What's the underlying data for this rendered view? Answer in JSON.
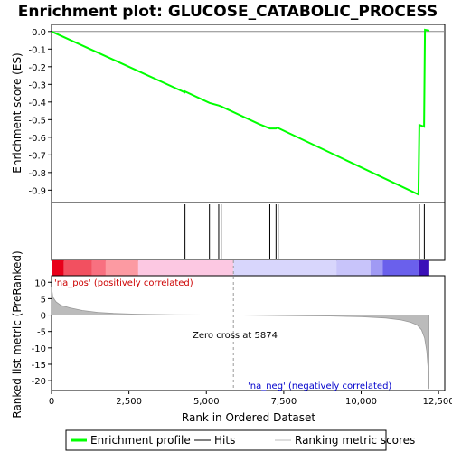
{
  "chart_data": {
    "type": "line",
    "title": "Enrichment plot: GLUCOSE_CATABOLIC_PROCESS",
    "top_panel": {
      "ylabel": "Enrichment score (ES)",
      "ylim": [
        -0.97,
        0.04
      ],
      "yticks": [
        0.0,
        -0.1,
        -0.2,
        -0.3,
        -0.4,
        -0.5,
        -0.6,
        -0.7,
        -0.8,
        -0.9
      ],
      "ytick_labels": [
        "0.0",
        "-0.1",
        "-0.2",
        "-0.3",
        "-0.4",
        "-0.5",
        "-0.6",
        "-0.7",
        "-0.8",
        "-0.9"
      ],
      "series": [
        {
          "name": "Enrichment profile",
          "color": "#00ff00",
          "x": [
            0,
            4300,
            4310,
            5100,
            5400,
            5480,
            6700,
            7050,
            7250,
            7300,
            7350,
            11850,
            11880,
            12030,
            12060,
            12200
          ],
          "y": [
            0.0,
            -0.345,
            -0.34,
            -0.405,
            -0.42,
            -0.425,
            -0.525,
            -0.55,
            -0.55,
            -0.545,
            -0.55,
            -0.925,
            -0.53,
            -0.54,
            0.01,
            0.005
          ]
        }
      ]
    },
    "hits": {
      "name": "Hits",
      "positions": [
        4310,
        5100,
        5400,
        5480,
        6700,
        7050,
        7250,
        7320,
        11880,
        12040
      ]
    },
    "bottom_panel": {
      "ylabel": "Ranked list metric (PreRanked)",
      "xlabel": "Rank in Ordered Dataset",
      "ylim": [
        -23,
        12
      ],
      "yticks": [
        10,
        5,
        0,
        -5,
        -10,
        -15,
        -20
      ],
      "ytick_labels": [
        "10",
        "5",
        "0",
        "-5",
        "-10",
        "-15",
        "-20"
      ],
      "xlim": [
        0,
        12700
      ],
      "xticks": [
        0,
        2500,
        5000,
        7500,
        10000,
        12500
      ],
      "xtick_labels": [
        "0",
        "2,500",
        "5,000",
        "7,500",
        "10,000",
        "12,500"
      ],
      "metric": {
        "x": [
          0,
          40,
          150,
          300,
          600,
          1000,
          1500,
          2000,
          2800,
          4000,
          5874,
          7500,
          9000,
          10000,
          10800,
          11300,
          11600,
          11800,
          11950,
          12050,
          12120,
          12160,
          12190
        ],
        "y": [
          8.5,
          5.5,
          4.0,
          3.0,
          2.2,
          1.4,
          0.8,
          0.5,
          0.25,
          0.08,
          0.0,
          -0.15,
          -0.3,
          -0.5,
          -0.9,
          -1.5,
          -2.2,
          -3.0,
          -4.5,
          -7.0,
          -11.0,
          -16.0,
          -22.5
        ]
      },
      "zero_cross_label": "Zero cross at 5874",
      "zero_cross": 5874,
      "pos_label": "'na_pos' (positively correlated)",
      "neg_label": "'na_neg' (negatively correlated)",
      "pos_color": "#cc0000",
      "neg_color": "#0000cc"
    },
    "heat_bands": [
      {
        "start": 0,
        "end": 400,
        "color": "#e8001a"
      },
      {
        "start": 400,
        "end": 1300,
        "color": "#f25060"
      },
      {
        "start": 1300,
        "end": 1750,
        "color": "#f87080"
      },
      {
        "start": 1750,
        "end": 2800,
        "color": "#fc9aa2"
      },
      {
        "start": 2800,
        "end": 5874,
        "color": "#fcc8e2"
      },
      {
        "start": 5874,
        "end": 9200,
        "color": "#d8d6fc"
      },
      {
        "start": 9200,
        "end": 10300,
        "color": "#c8c4fa"
      },
      {
        "start": 10300,
        "end": 10700,
        "color": "#a09af4"
      },
      {
        "start": 10700,
        "end": 11850,
        "color": "#6a60ec"
      },
      {
        "start": 11850,
        "end": 12200,
        "color": "#3a10b8"
      }
    ],
    "legend": [
      {
        "label": "Enrichment profile",
        "color": "#00ff00"
      },
      {
        "label": "Hits",
        "color": "#000000"
      },
      {
        "label": "Ranking metric scores",
        "color": "#bbbbbb"
      }
    ],
    "legend_position": "bottom"
  }
}
